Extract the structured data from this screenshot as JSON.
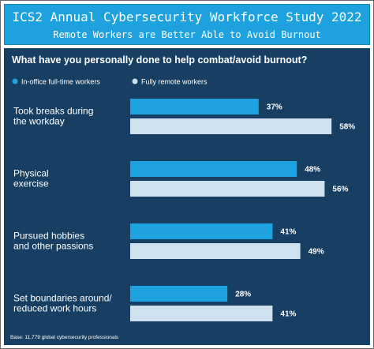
{
  "banner": {
    "title": "ICS2 Annual Cybersecurity Workforce Study 2022",
    "subtitle": "Remote Workers are Better Able to Avoid Burnout"
  },
  "colors": {
    "banner_bg": "#1ea2df",
    "panel_bg": "#173f63",
    "series_office": "#1ea2df",
    "series_remote": "#cfe0ee",
    "text": "#ffffff"
  },
  "chart_data": {
    "type": "bar",
    "orientation": "horizontal",
    "title": "What have you personally done to help combat/avoid burnout?",
    "categories": [
      [
        "Took breaks during",
        "the workday"
      ],
      [
        "Physical",
        "exercise"
      ],
      [
        "Pursued hobbies",
        "and other passions"
      ],
      [
        "Set boundaries around/",
        "reduced work hours"
      ]
    ],
    "series": [
      {
        "name": "In-office full-time workers",
        "values": [
          37,
          48,
          41,
          28
        ],
        "labels": [
          "37%",
          "48%",
          "41%",
          "28%"
        ]
      },
      {
        "name": "Fully remote workers",
        "values": [
          58,
          56,
          49,
          41
        ],
        "labels": [
          "58%",
          "56%",
          "49%",
          "41%"
        ]
      }
    ],
    "xlim": [
      0,
      60
    ],
    "unit": "%",
    "legend_position": "top-left",
    "grid": false,
    "footnote": "Base: 11,779 global cybersecurity professionals"
  }
}
